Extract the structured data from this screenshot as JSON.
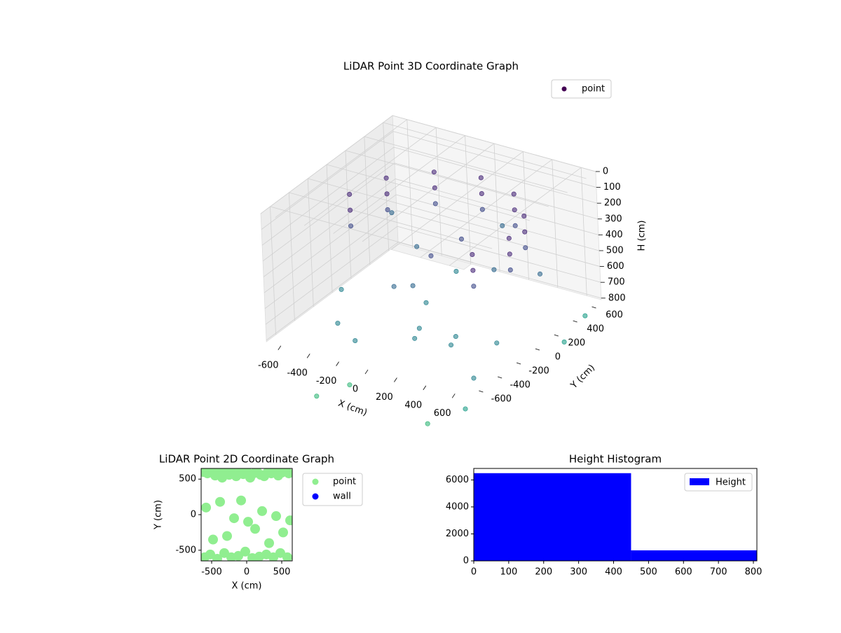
{
  "chart_data": [
    {
      "type": "scatter3d",
      "title": "LiDAR Point 3D Coordinate Graph",
      "xlabel": "X (cm)",
      "ylabel": "Y (cm)",
      "zlabel": "H (cm)",
      "xlim": [
        -700,
        700
      ],
      "ylim": [
        -700,
        700
      ],
      "zlim": [
        0,
        810
      ],
      "z_inverted": true,
      "xticks": [
        -600,
        -400,
        -200,
        0,
        200,
        400,
        600
      ],
      "yticks": [
        -600,
        -400,
        -200,
        0,
        200,
        400,
        600
      ],
      "zticks": [
        0,
        100,
        200,
        300,
        400,
        500,
        600,
        700,
        800
      ],
      "legend_loc": "upper right",
      "grid": true,
      "series": [
        {
          "name": "point",
          "colormap": "viridis",
          "x": [
            -550,
            -475,
            -275,
            0,
            275,
            475,
            550,
            475,
            -550,
            -475,
            -275,
            0,
            275,
            475,
            550,
            475,
            -550,
            -475,
            -275,
            0,
            275,
            475,
            550,
            475,
            -200,
            100,
            300,
            -400,
            0,
            200,
            -300,
            500,
            -100,
            350,
            -500,
            150,
            0,
            -250,
            450,
            600,
            -600,
            100,
            250,
            -150,
            600,
            -200,
            400,
            700,
            -400,
            650
          ],
          "y": [
            0,
            275,
            475,
            550,
            475,
            275,
            0,
            -275,
            0,
            275,
            475,
            550,
            475,
            275,
            0,
            -275,
            0,
            275,
            475,
            550,
            475,
            275,
            0,
            -275,
            -100,
            -300,
            200,
            -400,
            0,
            -500,
            300,
            -100,
            400,
            -350,
            -200,
            100,
            -200,
            -450,
            450,
            -500,
            500,
            600,
            -150,
            150,
            -600,
            -600,
            -700,
            300,
            -650,
            600
          ],
          "z": [
            150,
            150,
            150,
            150,
            150,
            150,
            150,
            150,
            250,
            250,
            250,
            250,
            250,
            250,
            250,
            250,
            350,
            350,
            350,
            350,
            350,
            350,
            350,
            350,
            600,
            700,
            500,
            750,
            400,
            650,
            550,
            780,
            700,
            720,
            650,
            300,
            500,
            800,
            600,
            800,
            500,
            450,
            780,
            800,
            950,
            1000,
            1050,
            900,
            1100,
            880
          ]
        }
      ]
    },
    {
      "type": "scatter",
      "title": "LiDAR Point 2D Coordinate Graph",
      "xlabel": "X (cm)",
      "ylabel": "Y (cm)",
      "xlim": [
        -650,
        650
      ],
      "ylim": [
        -650,
        650
      ],
      "xticks": [
        -500,
        0,
        500
      ],
      "yticks": [
        -500,
        0,
        500
      ],
      "legend_loc": "outside upper right",
      "series": [
        {
          "name": "point",
          "color": "#90ee90",
          "x": [
            -620,
            -560,
            -500,
            -450,
            -400,
            -350,
            -300,
            -250,
            -200,
            -150,
            -100,
            -50,
            0,
            50,
            100,
            150,
            200,
            250,
            300,
            350,
            400,
            450,
            500,
            550,
            600,
            -600,
            -520,
            -420,
            -320,
            -220,
            -120,
            -20,
            80,
            180,
            280,
            380,
            480,
            580,
            -580,
            -380,
            -180,
            20,
            220,
            420,
            620,
            -480,
            -280,
            -80,
            120,
            320,
            520
          ],
          "y": [
            600,
            580,
            620,
            550,
            600,
            520,
            610,
            560,
            590,
            540,
            600,
            570,
            610,
            520,
            580,
            600,
            560,
            540,
            600,
            580,
            620,
            550,
            590,
            610,
            580,
            -600,
            -560,
            -620,
            -540,
            -600,
            -580,
            -520,
            -610,
            -590,
            -560,
            -600,
            -540,
            -600,
            100,
            180,
            -50,
            -100,
            50,
            -20,
            -80,
            -350,
            -300,
            200,
            -200,
            -400,
            -250
          ]
        },
        {
          "name": "wall",
          "color": "#0000ff",
          "x": [],
          "y": []
        }
      ]
    },
    {
      "type": "histogram",
      "title": "Height Histogram",
      "bins": [
        0,
        450,
        810
      ],
      "xlim": [
        0,
        810
      ],
      "ylim": [
        0,
        6850
      ],
      "xticks": [
        0,
        100,
        200,
        300,
        400,
        500,
        600,
        700,
        800
      ],
      "yticks": [
        0,
        2000,
        4000,
        6000
      ],
      "legend_loc": "upper right",
      "series": [
        {
          "name": "Height",
          "color": "#0000ff",
          "values": [
            6500,
            780
          ]
        }
      ]
    }
  ]
}
